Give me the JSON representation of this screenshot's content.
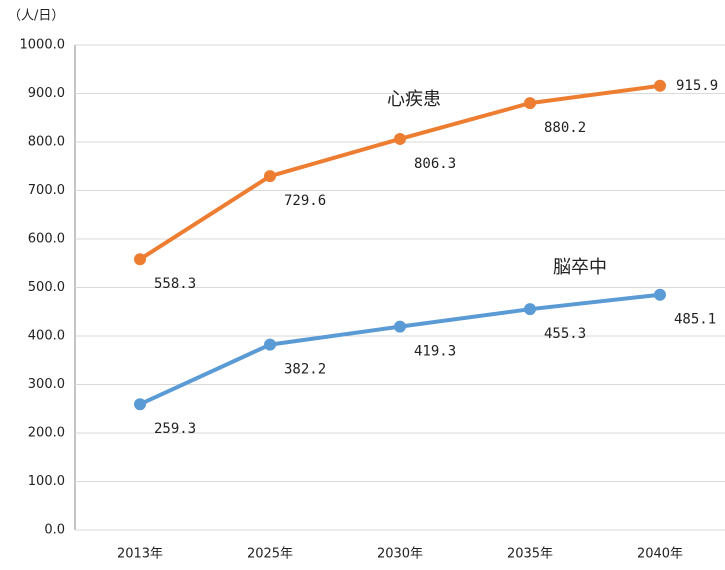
{
  "chart_data": {
    "type": "line",
    "y_label": "（人/日）",
    "categories": [
      "2013年",
      "2025年",
      "2030年",
      "2035年",
      "2040年"
    ],
    "series": [
      {
        "name": "心疾患",
        "color": "#ed7d31",
        "values": [
          558.3,
          729.6,
          806.3,
          880.2,
          915.9
        ]
      },
      {
        "name": "脳卒中",
        "color": "#5b9bd5",
        "values": [
          259.3,
          382.2,
          419.3,
          455.3,
          485.1
        ]
      }
    ],
    "ylim": [
      0,
      1000
    ],
    "yticks": [
      {
        "value": 0,
        "label": "0.0"
      },
      {
        "value": 100,
        "label": "100.0"
      },
      {
        "value": 200,
        "label": "200.0"
      },
      {
        "value": 300,
        "label": "300.0"
      },
      {
        "value": 400,
        "label": "400.0"
      },
      {
        "value": 500,
        "label": "500.0"
      },
      {
        "value": 600,
        "label": "600.0"
      },
      {
        "value": 700,
        "label": "700.0"
      },
      {
        "value": 800,
        "label": "800.0"
      },
      {
        "value": 900,
        "label": "900.0"
      },
      {
        "value": 1000,
        "label": "1000.0"
      }
    ],
    "grid": true
  }
}
